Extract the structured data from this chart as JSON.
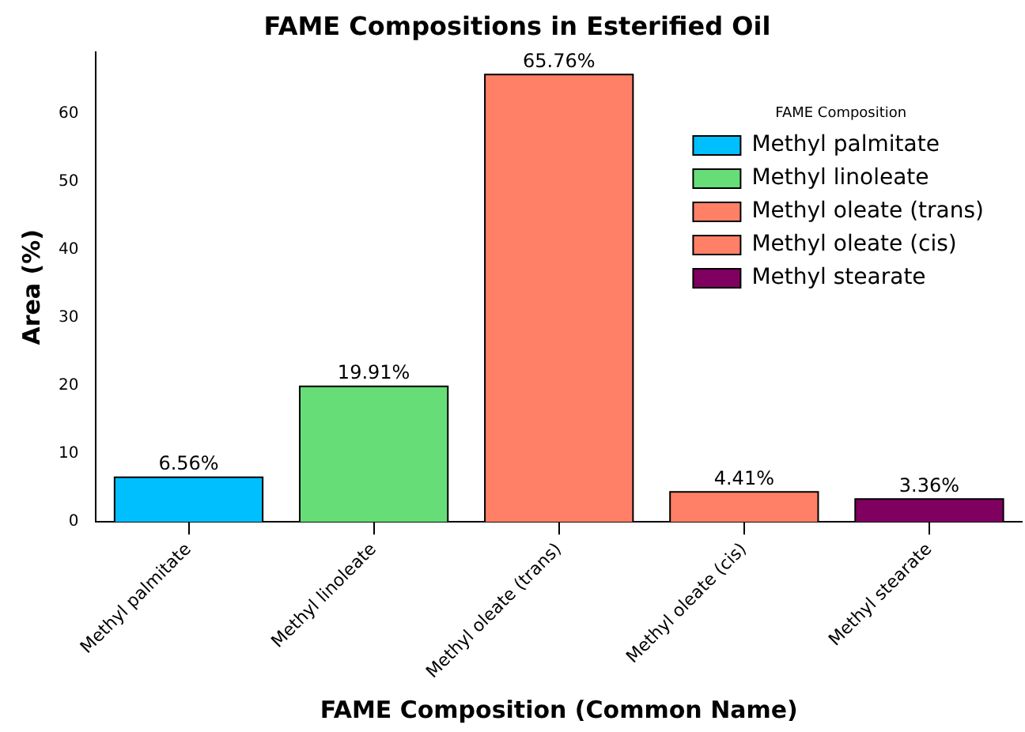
{
  "chart_data": {
    "type": "bar",
    "title": "FAME Compositions in Esterified Oil",
    "xlabel": "FAME Composition (Common Name)",
    "ylabel": "Area (%)",
    "legend_title": "FAME Composition",
    "categories": [
      "Methyl palmitate",
      "Methyl linoleate",
      "Methyl oleate (trans)",
      "Methyl oleate (cis)",
      "Methyl stearate"
    ],
    "series": [
      {
        "name": "Methyl palmitate",
        "color": "#00bfff",
        "values": [
          6.56,
          null,
          null,
          null,
          null
        ],
        "value_labels": [
          "6.56%",
          null,
          null,
          null,
          null
        ]
      },
      {
        "name": "Methyl linoleate",
        "color": "#66dd77",
        "values": [
          null,
          19.91,
          null,
          null,
          null
        ],
        "value_labels": [
          null,
          "19.91%",
          null,
          null,
          null
        ]
      },
      {
        "name": "Methyl oleate (trans)",
        "color": "#ff8066",
        "values": [
          null,
          null,
          65.76,
          null,
          null
        ],
        "value_labels": [
          null,
          null,
          "65.76%",
          null,
          null
        ]
      },
      {
        "name": "Methyl oleate (cis)",
        "color": "#ff8066",
        "values": [
          null,
          null,
          null,
          4.41,
          null
        ],
        "value_labels": [
          null,
          null,
          null,
          "4.41%",
          null
        ]
      },
      {
        "name": "Methyl stearate",
        "color": "#800060",
        "values": [
          null,
          null,
          null,
          null,
          3.36
        ],
        "value_labels": [
          null,
          null,
          null,
          null,
          "3.36%"
        ]
      }
    ],
    "ylim": [
      0,
      69
    ],
    "yticks": [
      0,
      10,
      20,
      30,
      40,
      50,
      60
    ],
    "grid": false,
    "legend": "top right"
  }
}
